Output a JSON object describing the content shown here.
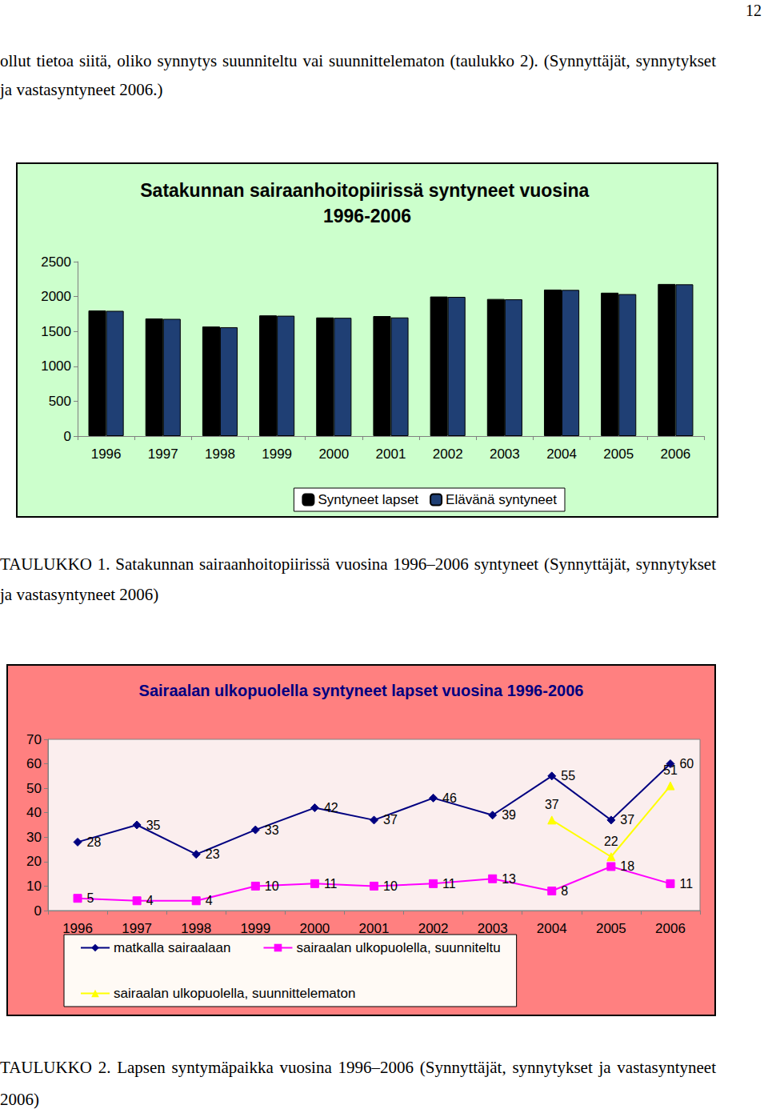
{
  "page_number": "12",
  "paragraph": "ollut tietoa siitä, oliko synnytys suunniteltu vai suunnittelematon (taulukko 2). (Synnyttäjät, synnytykset ja vastasyntyneet 2006.)",
  "chart_data": [
    {
      "type": "bar",
      "title": "Satakunnan sairaanhoitopiirissä syntyneet vuosina 1996-2006",
      "categories": [
        "1996",
        "1997",
        "1998",
        "1999",
        "2000",
        "2001",
        "2002",
        "2003",
        "2004",
        "2005",
        "2006"
      ],
      "series": [
        {
          "name": "Syntyneet lapset",
          "color": "#000000",
          "values": [
            1800,
            1685,
            1570,
            1730,
            1700,
            1720,
            2000,
            1965,
            2100,
            2055,
            2180
          ]
        },
        {
          "name": "Elävänä syntyneet",
          "color": "#1f3f74",
          "values": [
            1795,
            1680,
            1560,
            1725,
            1695,
            1700,
            1995,
            1960,
            2095,
            2035,
            2175
          ]
        }
      ],
      "ylim": [
        0,
        2500
      ],
      "yticks": [
        0,
        500,
        1000,
        1500,
        2000,
        2500
      ],
      "grid": false,
      "legend": "bottom"
    },
    {
      "type": "line",
      "title": "Sairaalan ulkopuolella syntyneet lapset vuosina 1996-2006",
      "categories": [
        "1996",
        "1997",
        "1998",
        "1999",
        "2000",
        "2001",
        "2002",
        "2003",
        "2004",
        "2005",
        "2006"
      ],
      "series": [
        {
          "name": "matkalla sairaalaan",
          "color": "#000080",
          "marker": "diamond",
          "line_style": "solid",
          "values": [
            28,
            35,
            23,
            33,
            42,
            37,
            46,
            39,
            55,
            37,
            60
          ]
        },
        {
          "name": "sairaalan ulkopuolella, suunniteltu",
          "color": "#ff00ff",
          "marker": "square",
          "line_style": "solid",
          "values": [
            5,
            4,
            4,
            10,
            11,
            10,
            11,
            13,
            8,
            18,
            11
          ]
        },
        {
          "name": "sairaalan ulkopuolella, suunnittelematon",
          "color": "#ffff00",
          "marker": "triangle",
          "line_style": "solid",
          "values": [
            null,
            null,
            null,
            null,
            null,
            null,
            null,
            null,
            37,
            22,
            51
          ]
        }
      ],
      "ylim": [
        0,
        70
      ],
      "yticks": [
        0,
        10,
        20,
        30,
        40,
        50,
        60,
        70
      ],
      "grid": false,
      "legend": "bottom",
      "data_labels": true
    }
  ],
  "captions": [
    "TAULUKKO 1. Satakunnan sairaanhoitopiirissä vuosina 1996–2006 syntyneet (Synnyttäjät, synnytykset ja vastasyntyneet 2006)",
    "TAULUKKO 2. Lapsen syntymäpaikka vuosina 1996–2006 (Synnyttäjät, synnytykset ja vastasyntyneet 2006)"
  ]
}
